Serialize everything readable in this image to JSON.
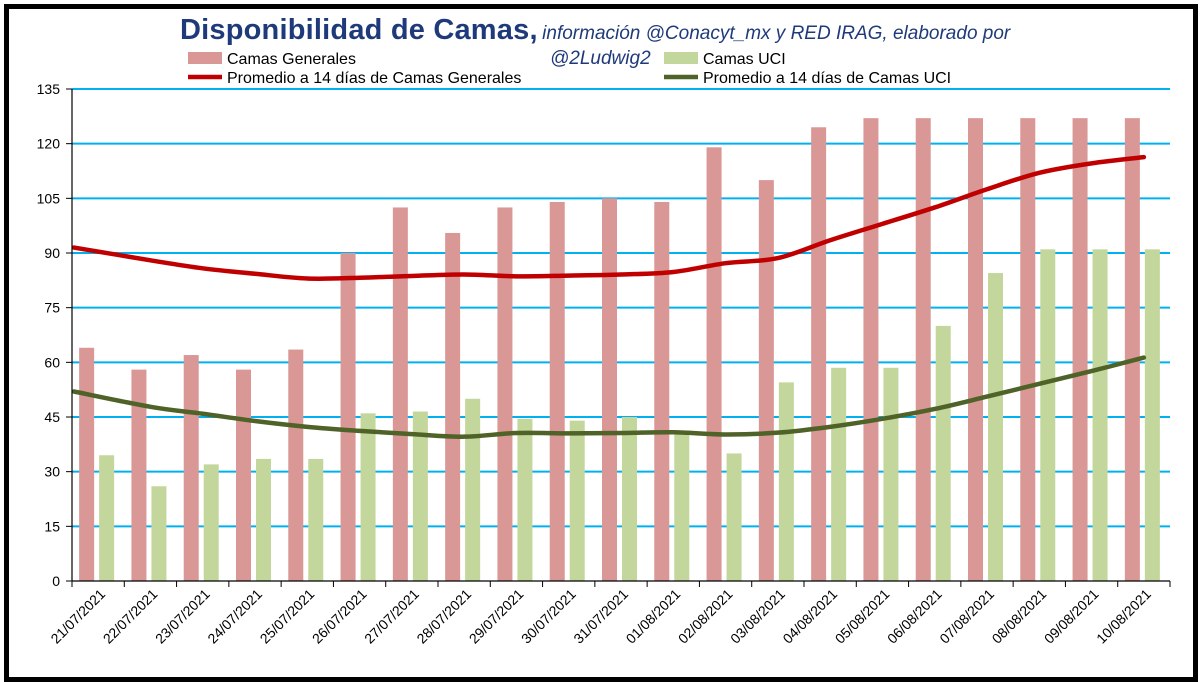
{
  "title": {
    "main": "Disponibilidad de Camas,",
    "subtitle_line1": "información @Conacyt_mx y RED IRAG, elaborado por",
    "subtitle_line2": "@2Ludwig2"
  },
  "colors": {
    "bar_generales": "#d99795",
    "bar_uci": "#c3d69b",
    "line_generales": "#c00000",
    "line_uci": "#4f6228",
    "grid": "#00b0f0",
    "title": "#1f3a7a"
  },
  "chart_data": {
    "type": "bar",
    "title": "Disponibilidad de Camas",
    "categories": [
      "21/07/2021",
      "22/07/2021",
      "23/07/2021",
      "24/07/2021",
      "25/07/2021",
      "26/07/2021",
      "27/07/2021",
      "28/07/2021",
      "29/07/2021",
      "30/07/2021",
      "31/07/2021",
      "01/08/2021",
      "02/08/2021",
      "03/08/2021",
      "04/08/2021",
      "05/08/2021",
      "06/08/2021",
      "07/08/2021",
      "08/08/2021",
      "09/08/2021",
      "10/08/2021"
    ],
    "ylim": [
      0,
      135
    ],
    "yticks": [
      "0",
      "15",
      "30",
      "45",
      "60",
      "75",
      "90",
      "105",
      "120",
      "135"
    ],
    "legend": [
      "Camas Generales",
      "Camas UCI",
      "Promedio a 14 días de Camas Generales",
      "Promedio a 14 días de Camas UCI"
    ],
    "series": [
      {
        "name": "Camas Generales",
        "kind": "bar",
        "values": [
          64,
          58,
          62,
          58,
          63.5,
          90,
          102.5,
          95.5,
          102.5,
          104,
          105,
          104,
          119,
          110,
          124.5,
          127,
          127,
          127,
          127,
          127,
          127
        ]
      },
      {
        "name": "Camas UCI",
        "kind": "bar",
        "values": [
          34.5,
          26,
          32,
          33.5,
          33.5,
          46,
          46.5,
          50,
          44.5,
          44,
          45,
          40.5,
          35,
          54.5,
          58.5,
          58.5,
          70,
          84.5,
          91,
          91,
          91
        ]
      },
      {
        "name": "Promedio a 14 días de Camas Generales",
        "kind": "line",
        "values": [
          91.5,
          88,
          85.8,
          84.3,
          83,
          83.2,
          83.7,
          84.1,
          83.6,
          83.8,
          84.1,
          84.8,
          87.2,
          88.6,
          93.5,
          98,
          102.5,
          107.5,
          112,
          114.6,
          116.3
        ]
      },
      {
        "name": "Promedio a 14 días de Camas UCI",
        "kind": "line",
        "values": [
          52,
          47.8,
          45.9,
          43.9,
          42.3,
          41.2,
          40.3,
          39.6,
          40.6,
          40.5,
          40.6,
          40.8,
          40.2,
          40.7,
          42.3,
          44.5,
          47.2,
          50.6,
          54.1,
          57.6,
          61.3
        ]
      }
    ]
  }
}
